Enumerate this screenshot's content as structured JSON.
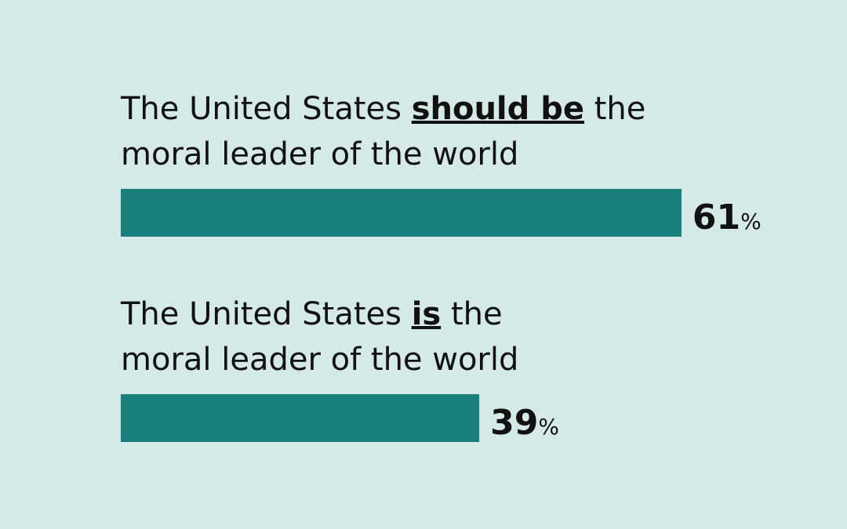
{
  "chart_data": {
    "type": "bar",
    "orientation": "horizontal",
    "color": "#1a7e7b",
    "categories": [
      {
        "line1": [
          "The United States",
          "should be",
          "the"
        ],
        "line2": "moral leader of the world"
      },
      {
        "line1": [
          "The United States",
          "is",
          "the"
        ],
        "line2": "moral leader of the world"
      }
    ],
    "values": [
      61,
      39
    ],
    "value_labels": [
      "61%",
      "39%"
    ],
    "xlim": [
      0,
      100
    ]
  }
}
